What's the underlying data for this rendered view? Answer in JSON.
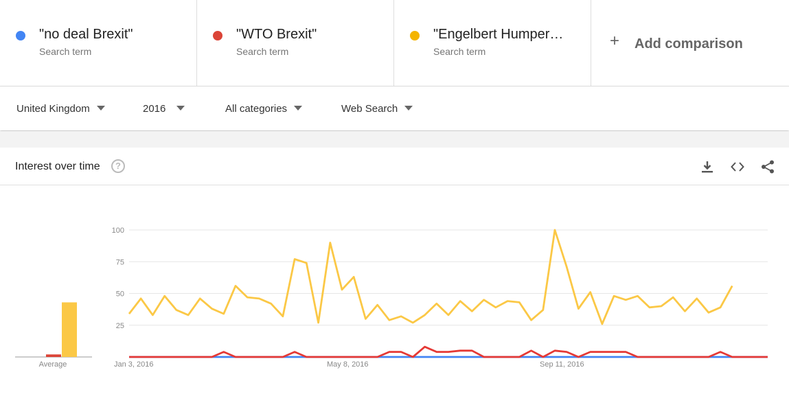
{
  "terms": [
    {
      "name": "\"no deal Brexit\"",
      "sub": "Search term",
      "color": "#4285f4"
    },
    {
      "name": "\"WTO Brexit\"",
      "sub": "Search term",
      "color": "#db4437"
    },
    {
      "name": "\"Engelbert Humper…",
      "sub": "Search term",
      "color": "#f4b400"
    }
  ],
  "add_comparison": {
    "label": "Add comparison",
    "icon": "plus-icon"
  },
  "filters": {
    "region": "United Kingdom",
    "time": "2016",
    "category": "All categories",
    "property": "Web Search"
  },
  "card": {
    "title": "Interest over time",
    "help_icon": "help-icon",
    "actions": [
      "download-icon",
      "embed-icon",
      "share-icon"
    ]
  },
  "chart_data": {
    "type": "line",
    "x_tick_labels": [
      "Jan 3, 2016",
      "May 8, 2016",
      "Sep 11, 2016"
    ],
    "y_ticks": [
      25,
      50,
      75,
      100
    ],
    "ylim": [
      0,
      100
    ],
    "average_label": "Average",
    "averages": [
      {
        "name": "\"no deal Brexit\"",
        "value": 0,
        "color": "#4285f4"
      },
      {
        "name": "\"WTO Brexit\"",
        "value": 2,
        "color": "#db4437"
      },
      {
        "name": "\"Engelbert Humper…",
        "value": 43,
        "color": "#fbc846"
      }
    ],
    "series": [
      {
        "name": "\"no deal Brexit\"",
        "color": "#4285f4",
        "values": [
          0,
          0,
          0,
          0,
          0,
          0,
          0,
          0,
          0,
          0,
          0,
          0,
          0,
          0,
          0,
          0,
          0,
          0,
          0,
          0,
          0,
          0,
          0,
          0,
          0,
          0,
          0,
          0,
          0,
          0,
          0,
          0,
          0,
          0,
          0,
          0,
          0,
          0,
          0,
          0,
          0,
          0,
          0,
          0,
          0,
          0,
          0,
          0,
          0,
          0,
          0,
          0,
          0,
          0,
          0
        ]
      },
      {
        "name": "\"WTO Brexit\"",
        "color": "#e53935",
        "values": [
          0,
          0,
          0,
          0,
          0,
          0,
          0,
          0,
          4,
          0,
          0,
          0,
          0,
          0,
          4,
          0,
          0,
          0,
          0,
          0,
          0,
          0,
          4,
          4,
          0,
          8,
          4,
          4,
          5,
          5,
          0,
          0,
          0,
          0,
          5,
          0,
          5,
          4,
          0,
          4,
          4,
          4,
          4,
          0,
          0,
          0,
          0,
          0,
          0,
          0,
          4,
          0,
          0,
          0,
          0
        ]
      },
      {
        "name": "\"Engelbert Humper…",
        "color": "#fbc846",
        "values": [
          34,
          46,
          33,
          48,
          37,
          33,
          46,
          38,
          34,
          56,
          47,
          46,
          42,
          32,
          77,
          74,
          27,
          90,
          53,
          63,
          30,
          41,
          29,
          32,
          27,
          33,
          42,
          33,
          44,
          36,
          45,
          39,
          44,
          43,
          29,
          37,
          100,
          71,
          38,
          51,
          26,
          48,
          45,
          48,
          39,
          40,
          47,
          36,
          46,
          35,
          39,
          56,
          null,
          null,
          null
        ]
      }
    ]
  }
}
